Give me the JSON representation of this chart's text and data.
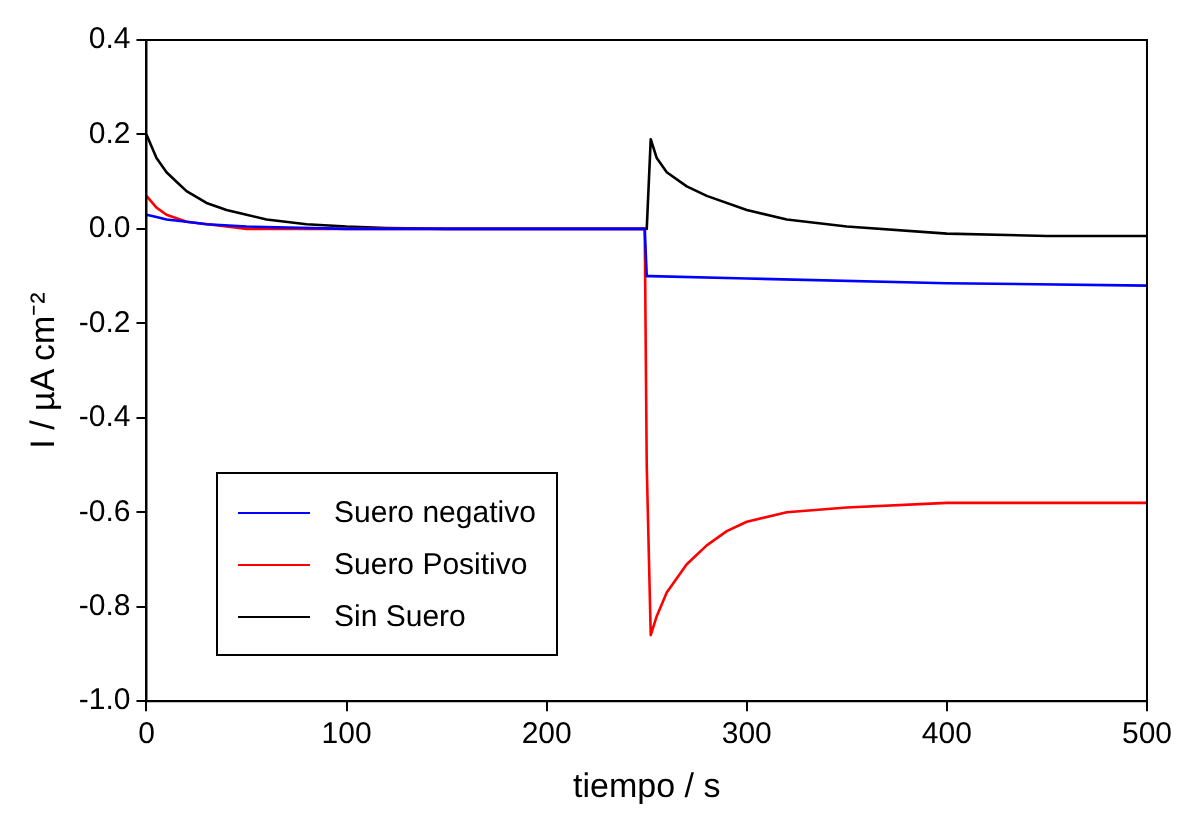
{
  "chart_data": {
    "type": "line",
    "xlabel": "tiempo / s",
    "ylabel": "I / µA cm⁻²",
    "xlim": [
      0,
      500
    ],
    "xticks": [
      0,
      100,
      200,
      300,
      400,
      500
    ],
    "ylim": [
      -1.0,
      0.4
    ],
    "yticks": [
      {
        "value": -1.0,
        "label": "-1.0"
      },
      -0.8,
      -0.6,
      -0.4,
      -0.2,
      {
        "value": 0,
        "label": "0.0"
      },
      0.2,
      0.4
    ],
    "grid": false,
    "legend": "bottom left",
    "series": [
      {
        "name": "Suero negativo",
        "color": "#0000ff",
        "x": [
          0,
          5,
          10,
          20,
          30,
          50,
          100,
          200,
          249,
          250,
          252,
          300,
          400,
          500
        ],
        "values": [
          0.03,
          0.025,
          0.02,
          0.015,
          0.01,
          0.005,
          0.0,
          0.0,
          0.0,
          -0.1,
          -0.1,
          -0.105,
          -0.115,
          -0.12
        ]
      },
      {
        "name": "Suero Positivo",
        "color": "#ff0000",
        "x": [
          0,
          2,
          5,
          10,
          20,
          30,
          40,
          50,
          100,
          200,
          249,
          250,
          252,
          255,
          260,
          270,
          280,
          290,
          300,
          320,
          350,
          400,
          450,
          500
        ],
        "values": [
          0.07,
          0.06,
          0.045,
          0.03,
          0.015,
          null,
          0.005,
          0.0,
          0.0,
          0.0,
          0.0,
          -0.5,
          -0.86,
          -0.82,
          -0.77,
          -0.71,
          -0.67,
          -0.64,
          -0.62,
          -0.6,
          -0.59,
          -0.58,
          -0.58,
          -0.58
        ]
      },
      {
        "name": "Sin Suero",
        "color": "#000000",
        "x": [
          0,
          2,
          5,
          10,
          15,
          20,
          30,
          40,
          50,
          60,
          80,
          100,
          120,
          150,
          200,
          249,
          250,
          252,
          255,
          260,
          270,
          280,
          300,
          320,
          350,
          400,
          450,
          500
        ],
        "values": [
          0.2,
          0.18,
          0.15,
          0.12,
          0.1,
          0.08,
          0.055,
          0.04,
          0.03,
          0.02,
          0.01,
          0.005,
          0.002,
          0.0,
          0.0,
          0.0,
          0.0,
          0.19,
          0.15,
          0.12,
          0.09,
          0.07,
          0.04,
          0.02,
          0.005,
          -0.01,
          -0.015,
          -0.015
        ]
      }
    ]
  }
}
